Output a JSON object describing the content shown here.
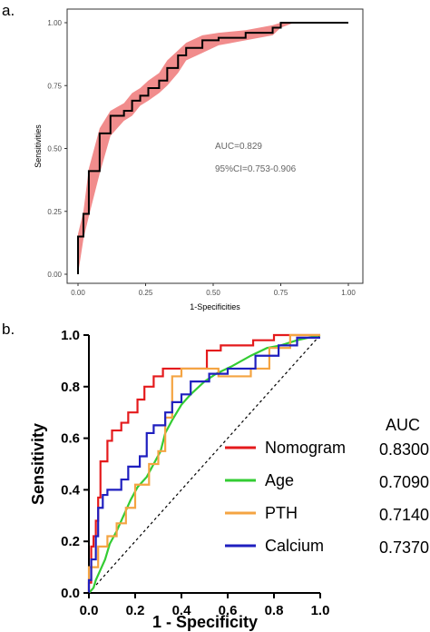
{
  "chart_data": [
    {
      "panel_label": "a.",
      "type": "line",
      "xlabel": "1-Specificities",
      "ylabel": "Sensitivities",
      "xlim": [
        0,
        1
      ],
      "ylim": [
        0,
        1
      ],
      "x_ticks": [
        "0.00",
        "0.25",
        "0.50",
        "0.75",
        "1.00"
      ],
      "y_ticks": [
        "0.00",
        "0.25",
        "0.50",
        "0.75",
        "1.00"
      ],
      "grid": false,
      "annotations": [
        "AUC=0.829",
        "95%CI=0.753-0.906"
      ],
      "colors": {
        "roc": "#000000",
        "ci_band": "#f08080"
      },
      "series": [
        {
          "values": [
            [
              0.0,
              0.0
            ],
            [
              0.0,
              0.15
            ],
            [
              0.02,
              0.15
            ],
            [
              0.02,
              0.24
            ],
            [
              0.04,
              0.24
            ],
            [
              0.04,
              0.41
            ],
            [
              0.08,
              0.41
            ],
            [
              0.08,
              0.56
            ],
            [
              0.12,
              0.56
            ],
            [
              0.12,
              0.63
            ],
            [
              0.17,
              0.63
            ],
            [
              0.17,
              0.65
            ],
            [
              0.2,
              0.65
            ],
            [
              0.2,
              0.69
            ],
            [
              0.23,
              0.69
            ],
            [
              0.23,
              0.71
            ],
            [
              0.26,
              0.71
            ],
            [
              0.26,
              0.74
            ],
            [
              0.3,
              0.74
            ],
            [
              0.3,
              0.77
            ],
            [
              0.33,
              0.77
            ],
            [
              0.33,
              0.82
            ],
            [
              0.37,
              0.82
            ],
            [
              0.37,
              0.87
            ],
            [
              0.4,
              0.87
            ],
            [
              0.4,
              0.9
            ],
            [
              0.46,
              0.9
            ],
            [
              0.46,
              0.93
            ],
            [
              0.52,
              0.93
            ],
            [
              0.52,
              0.94
            ],
            [
              0.62,
              0.94
            ],
            [
              0.62,
              0.96
            ],
            [
              0.72,
              0.96
            ],
            [
              0.72,
              0.98
            ],
            [
              0.75,
              0.98
            ],
            [
              0.75,
              1.0
            ],
            [
              1.0,
              1.0
            ]
          ]
        }
      ],
      "ci_band": {
        "lower": [
          [
            0.0,
            0.0
          ],
          [
            0.02,
            0.14
          ],
          [
            0.04,
            0.23
          ],
          [
            0.08,
            0.4
          ],
          [
            0.12,
            0.55
          ],
          [
            0.17,
            0.61
          ],
          [
            0.2,
            0.63
          ],
          [
            0.23,
            0.67
          ],
          [
            0.26,
            0.69
          ],
          [
            0.3,
            0.72
          ],
          [
            0.33,
            0.75
          ],
          [
            0.37,
            0.8
          ],
          [
            0.4,
            0.85
          ],
          [
            0.46,
            0.88
          ],
          [
            0.52,
            0.91
          ],
          [
            0.62,
            0.93
          ],
          [
            0.72,
            0.95
          ],
          [
            0.75,
            0.98
          ],
          [
            0.8,
            1.0
          ],
          [
            1.0,
            1.0
          ]
        ],
        "upper": [
          [
            0.0,
            0.16
          ],
          [
            0.02,
            0.25
          ],
          [
            0.04,
            0.42
          ],
          [
            0.08,
            0.58
          ],
          [
            0.12,
            0.65
          ],
          [
            0.17,
            0.68
          ],
          [
            0.2,
            0.72
          ],
          [
            0.23,
            0.74
          ],
          [
            0.26,
            0.77
          ],
          [
            0.3,
            0.8
          ],
          [
            0.33,
            0.85
          ],
          [
            0.37,
            0.89
          ],
          [
            0.4,
            0.92
          ],
          [
            0.46,
            0.95
          ],
          [
            0.52,
            0.96
          ],
          [
            0.62,
            0.97
          ],
          [
            0.72,
            0.99
          ],
          [
            0.75,
            1.0
          ],
          [
            1.0,
            1.0
          ]
        ]
      }
    },
    {
      "panel_label": "b.",
      "type": "line",
      "xlabel": "1 - Specificity",
      "ylabel": "Sensitivity",
      "xlim": [
        0,
        1
      ],
      "ylim": [
        0,
        1
      ],
      "x_ticks": [
        "0.0",
        "0.2",
        "0.4",
        "0.6",
        "0.8",
        "1.0"
      ],
      "y_ticks": [
        "0.0",
        "0.2",
        "0.4",
        "0.6",
        "0.8",
        "1.0"
      ],
      "grid": false,
      "legend_header": "AUC",
      "legend_position": "right",
      "reference_line": "diagonal",
      "series": [
        {
          "name": "Nomogram",
          "auc": "0.8300",
          "color": "#e41a1c",
          "values": [
            [
              0,
              0
            ],
            [
              0,
              0.04
            ],
            [
              0.01,
              0.04
            ],
            [
              0.01,
              0.18
            ],
            [
              0.02,
              0.18
            ],
            [
              0.02,
              0.22
            ],
            [
              0.03,
              0.22
            ],
            [
              0.03,
              0.28
            ],
            [
              0.04,
              0.28
            ],
            [
              0.04,
              0.37
            ],
            [
              0.05,
              0.37
            ],
            [
              0.05,
              0.51
            ],
            [
              0.08,
              0.51
            ],
            [
              0.08,
              0.59
            ],
            [
              0.1,
              0.59
            ],
            [
              0.1,
              0.63
            ],
            [
              0.14,
              0.63
            ],
            [
              0.14,
              0.66
            ],
            [
              0.17,
              0.66
            ],
            [
              0.17,
              0.7
            ],
            [
              0.21,
              0.7
            ],
            [
              0.21,
              0.75
            ],
            [
              0.24,
              0.75
            ],
            [
              0.24,
              0.8
            ],
            [
              0.28,
              0.8
            ],
            [
              0.28,
              0.84
            ],
            [
              0.32,
              0.84
            ],
            [
              0.32,
              0.87
            ],
            [
              0.51,
              0.87
            ],
            [
              0.51,
              0.94
            ],
            [
              0.57,
              0.94
            ],
            [
              0.57,
              0.96
            ],
            [
              0.71,
              0.96
            ],
            [
              0.71,
              0.98
            ],
            [
              0.8,
              0.98
            ],
            [
              0.8,
              1.0
            ],
            [
              1.0,
              1.0
            ]
          ]
        },
        {
          "name": "Age",
          "auc": "0.7090",
          "color": "#33cc33",
          "values": [
            [
              0,
              0
            ],
            [
              0.02,
              0.02
            ],
            [
              0.03,
              0.05
            ],
            [
              0.05,
              0.09
            ],
            [
              0.07,
              0.13
            ],
            [
              0.09,
              0.19
            ],
            [
              0.12,
              0.24
            ],
            [
              0.15,
              0.3
            ],
            [
              0.18,
              0.36
            ],
            [
              0.21,
              0.41
            ],
            [
              0.25,
              0.45
            ],
            [
              0.28,
              0.5
            ],
            [
              0.31,
              0.55
            ],
            [
              0.33,
              0.62
            ],
            [
              0.36,
              0.67
            ],
            [
              0.4,
              0.73
            ],
            [
              0.44,
              0.77
            ],
            [
              0.5,
              0.82
            ],
            [
              0.55,
              0.85
            ],
            [
              0.62,
              0.88
            ],
            [
              0.7,
              0.92
            ],
            [
              0.77,
              0.95
            ],
            [
              0.83,
              0.96
            ],
            [
              0.9,
              0.98
            ],
            [
              0.95,
              0.99
            ],
            [
              1.0,
              1.0
            ]
          ]
        },
        {
          "name": "PTH",
          "auc": "0.7140",
          "color": "#f4a442",
          "values": [
            [
              0,
              0
            ],
            [
              0,
              0.1
            ],
            [
              0.04,
              0.1
            ],
            [
              0.04,
              0.18
            ],
            [
              0.08,
              0.18
            ],
            [
              0.08,
              0.22
            ],
            [
              0.12,
              0.22
            ],
            [
              0.12,
              0.27
            ],
            [
              0.16,
              0.27
            ],
            [
              0.16,
              0.33
            ],
            [
              0.2,
              0.33
            ],
            [
              0.2,
              0.42
            ],
            [
              0.26,
              0.42
            ],
            [
              0.26,
              0.5
            ],
            [
              0.3,
              0.5
            ],
            [
              0.3,
              0.55
            ],
            [
              0.33,
              0.55
            ],
            [
              0.33,
              0.68
            ],
            [
              0.36,
              0.68
            ],
            [
              0.36,
              0.84
            ],
            [
              0.4,
              0.84
            ],
            [
              0.4,
              0.87
            ],
            [
              0.56,
              0.87
            ],
            [
              0.56,
              0.84
            ],
            [
              0.7,
              0.84
            ],
            [
              0.7,
              0.87
            ],
            [
              0.78,
              0.87
            ],
            [
              0.78,
              0.95
            ],
            [
              0.87,
              0.95
            ],
            [
              0.87,
              1.0
            ],
            [
              1.0,
              1.0
            ]
          ]
        },
        {
          "name": "Calcium",
          "auc": "0.7370",
          "color": "#1f1fbf",
          "values": [
            [
              0,
              0
            ],
            [
              0,
              0.05
            ],
            [
              0.01,
              0.05
            ],
            [
              0.01,
              0.13
            ],
            [
              0.03,
              0.13
            ],
            [
              0.03,
              0.22
            ],
            [
              0.04,
              0.22
            ],
            [
              0.04,
              0.33
            ],
            [
              0.06,
              0.33
            ],
            [
              0.06,
              0.38
            ],
            [
              0.08,
              0.38
            ],
            [
              0.08,
              0.4
            ],
            [
              0.14,
              0.4
            ],
            [
              0.14,
              0.44
            ],
            [
              0.17,
              0.44
            ],
            [
              0.17,
              0.49
            ],
            [
              0.22,
              0.49
            ],
            [
              0.22,
              0.53
            ],
            [
              0.25,
              0.53
            ],
            [
              0.25,
              0.62
            ],
            [
              0.28,
              0.62
            ],
            [
              0.28,
              0.65
            ],
            [
              0.33,
              0.65
            ],
            [
              0.33,
              0.7
            ],
            [
              0.36,
              0.7
            ],
            [
              0.36,
              0.74
            ],
            [
              0.4,
              0.74
            ],
            [
              0.4,
              0.77
            ],
            [
              0.44,
              0.77
            ],
            [
              0.44,
              0.82
            ],
            [
              0.52,
              0.82
            ],
            [
              0.52,
              0.85
            ],
            [
              0.6,
              0.85
            ],
            [
              0.6,
              0.87
            ],
            [
              0.72,
              0.87
            ],
            [
              0.72,
              0.92
            ],
            [
              0.82,
              0.92
            ],
            [
              0.82,
              0.96
            ],
            [
              0.9,
              0.96
            ],
            [
              0.9,
              0.99
            ],
            [
              1.0,
              0.99
            ]
          ]
        }
      ]
    }
  ]
}
